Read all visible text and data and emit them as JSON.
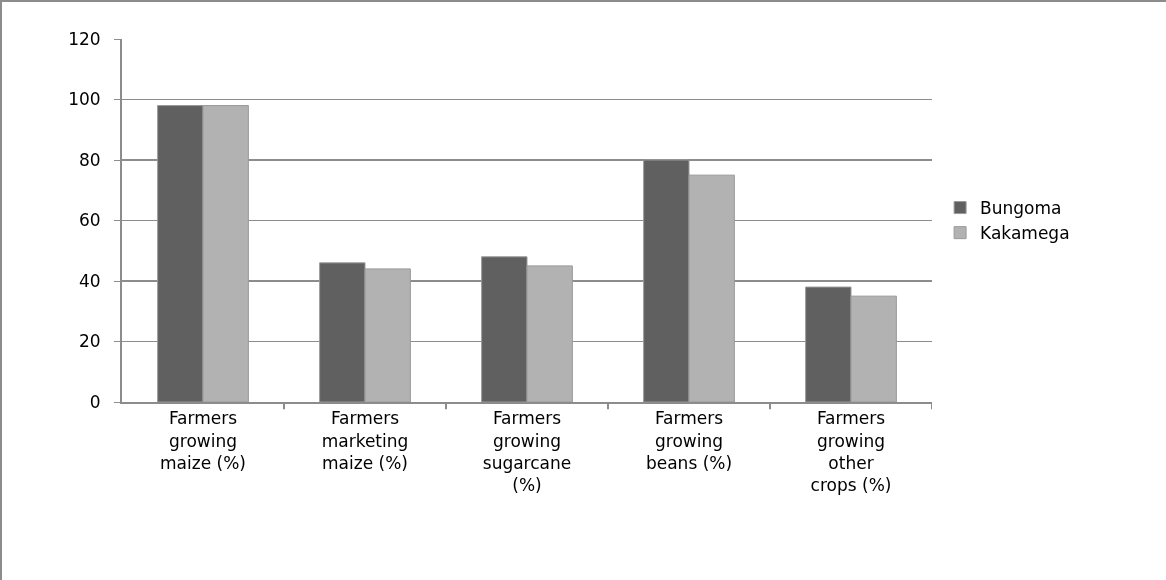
{
  "chart_data": {
    "type": "bar",
    "categories": [
      "Farmers growing maize (%)",
      "Farmers marketing maize (%)",
      "Farmers growing sugarcane (%)",
      "Farmers growing beans (%)",
      "Farmers growing other crops (%)"
    ],
    "series": [
      {
        "name": "Bungoma",
        "color": "#606060",
        "values": [
          98,
          46,
          48,
          80,
          38
        ]
      },
      {
        "name": "Kakamega",
        "color": "#b2b2b2",
        "values": [
          98,
          44,
          45,
          75,
          35
        ]
      }
    ],
    "ylim": [
      0,
      120
    ],
    "yticks": [
      0,
      20,
      40,
      60,
      80,
      100,
      120
    ],
    "grid": "y",
    "legend": "right"
  }
}
